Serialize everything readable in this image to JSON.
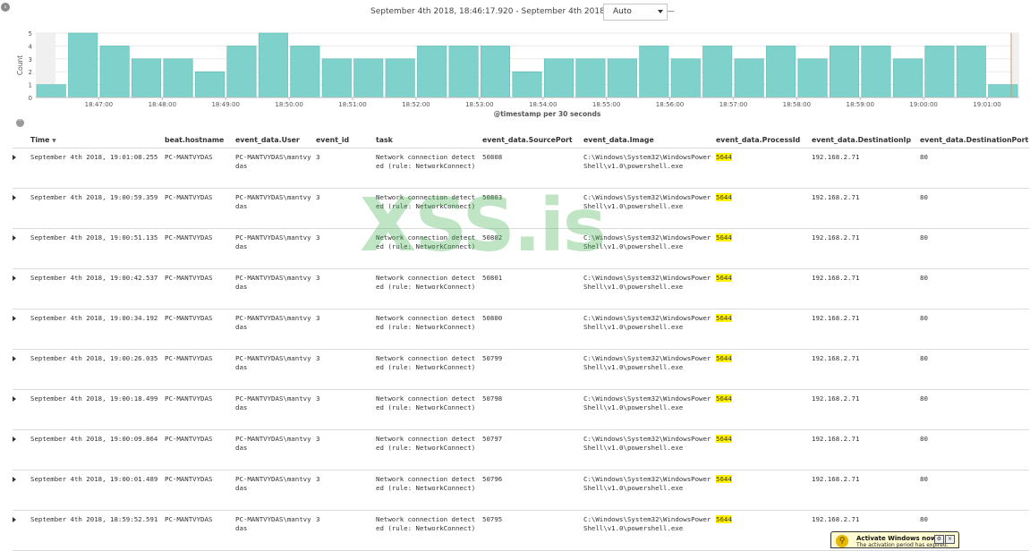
{
  "header": {
    "date_range": "September 4th 2018, 18:46:17.920 - September 4th 2018, 19:01:17.920 —",
    "interval_value": "Auto"
  },
  "chart_data": {
    "type": "bar",
    "ylabel": "Count",
    "xlabel": "@timestamp per 30 seconds",
    "ylim": [
      0,
      5
    ],
    "y_ticks": [
      "0",
      "1",
      "2",
      "3",
      "4",
      "5"
    ],
    "x_tick_labels": [
      "18:47:00",
      "18:48:00",
      "18:49:00",
      "18:50:00",
      "18:51:00",
      "18:52:00",
      "18:53:00",
      "18:54:00",
      "18:55:00",
      "18:56:00",
      "18:57:00",
      "18:58:00",
      "18:59:00",
      "19:00:00",
      "19:01:00"
    ],
    "values": [
      1,
      5,
      4,
      3,
      3,
      2,
      4,
      5,
      4,
      3,
      3,
      3,
      4,
      4,
      4,
      2,
      3,
      3,
      3,
      4,
      3,
      4,
      3,
      4,
      3,
      4,
      4,
      3,
      4,
      4,
      1
    ],
    "bar_color": "#7fd1cb",
    "bar_stroke": "#5bbdb6",
    "grid": true
  },
  "table": {
    "columns": [
      "Time",
      "beat.hostname",
      "event_data.User",
      "event_id",
      "task",
      "event_data.SourcePort",
      "event_data.Image",
      "event_data.ProcessId",
      "event_data.DestinationIp",
      "event_data.DestinationPort"
    ],
    "rows": [
      {
        "time": "September 4th 2018, 19:01:08.255",
        "host": "PC-MANTVYDAS",
        "user": "PC-MANTVYDAS\\mantvydas",
        "event_id": "3",
        "task": "Network connection detected (rule: NetworkConnect)",
        "source_port": "50808",
        "image": "C:\\Windows\\System32\\WindowsPowerShell\\v1.0\\powershell.exe",
        "process_id": "5644",
        "dest_ip": "192.168.2.71",
        "dest_port": "80"
      },
      {
        "time": "September 4th 2018, 19:00:59.359",
        "host": "PC-MANTVYDAS",
        "user": "PC-MANTVYDAS\\mantvydas",
        "event_id": "3",
        "task": "Network connection detected (rule: NetworkConnect)",
        "source_port": "50803",
        "image": "C:\\Windows\\System32\\WindowsPowerShell\\v1.0\\powershell.exe",
        "process_id": "5644",
        "dest_ip": "192.168.2.71",
        "dest_port": "80"
      },
      {
        "time": "September 4th 2018, 19:00:51.135",
        "host": "PC-MANTVYDAS",
        "user": "PC-MANTVYDAS\\mantvydas",
        "event_id": "3",
        "task": "Network connection detected (rule: NetworkConnect)",
        "source_port": "50802",
        "image": "C:\\Windows\\System32\\WindowsPowerShell\\v1.0\\powershell.exe",
        "process_id": "5644",
        "dest_ip": "192.168.2.71",
        "dest_port": "80"
      },
      {
        "time": "September 4th 2018, 19:00:42.537",
        "host": "PC-MANTVYDAS",
        "user": "PC-MANTVYDAS\\mantvydas",
        "event_id": "3",
        "task": "Network connection detected (rule: NetworkConnect)",
        "source_port": "50801",
        "image": "C:\\Windows\\System32\\WindowsPowerShell\\v1.0\\powershell.exe",
        "process_id": "5644",
        "dest_ip": "192.168.2.71",
        "dest_port": "80"
      },
      {
        "time": "September 4th 2018, 19:00:34.192",
        "host": "PC-MANTVYDAS",
        "user": "PC-MANTVYDAS\\mantvydas",
        "event_id": "3",
        "task": "Network connection detected (rule: NetworkConnect)",
        "source_port": "50800",
        "image": "C:\\Windows\\System32\\WindowsPowerShell\\v1.0\\powershell.exe",
        "process_id": "5644",
        "dest_ip": "192.168.2.71",
        "dest_port": "80"
      },
      {
        "time": "September 4th 2018, 19:00:26.035",
        "host": "PC-MANTVYDAS",
        "user": "PC-MANTVYDAS\\mantvydas",
        "event_id": "3",
        "task": "Network connection detected (rule: NetworkConnect)",
        "source_port": "50799",
        "image": "C:\\Windows\\System32\\WindowsPowerShell\\v1.0\\powershell.exe",
        "process_id": "5644",
        "dest_ip": "192.168.2.71",
        "dest_port": "80"
      },
      {
        "time": "September 4th 2018, 19:00:18.499",
        "host": "PC-MANTVYDAS",
        "user": "PC-MANTVYDAS\\mantvydas",
        "event_id": "3",
        "task": "Network connection detected (rule: NetworkConnect)",
        "source_port": "50798",
        "image": "C:\\Windows\\System32\\WindowsPowerShell\\v1.0\\powershell.exe",
        "process_id": "5644",
        "dest_ip": "192.168.2.71",
        "dest_port": "80"
      },
      {
        "time": "September 4th 2018, 19:00:09.864",
        "host": "PC-MANTVYDAS",
        "user": "PC-MANTVYDAS\\mantvydas",
        "event_id": "3",
        "task": "Network connection detected (rule: NetworkConnect)",
        "source_port": "50797",
        "image": "C:\\Windows\\System32\\WindowsPowerShell\\v1.0\\powershell.exe",
        "process_id": "5644",
        "dest_ip": "192.168.2.71",
        "dest_port": "80"
      },
      {
        "time": "September 4th 2018, 19:00:01.489",
        "host": "PC-MANTVYDAS",
        "user": "PC-MANTVYDAS\\mantvydas",
        "event_id": "3",
        "task": "Network connection detected (rule: NetworkConnect)",
        "source_port": "50796",
        "image": "C:\\Windows\\System32\\WindowsPowerShell\\v1.0\\powershell.exe",
        "process_id": "5644",
        "dest_ip": "192.168.2.71",
        "dest_port": "80"
      },
      {
        "time": "September 4th 2018, 18:59:52.591",
        "host": "PC-MANTVYDAS",
        "user": "PC-MANTVYDAS\\mantvydas",
        "event_id": "3",
        "task": "Network connection detected (rule: NetworkConnect)",
        "source_port": "50795",
        "image": "C:\\Windows\\System32\\WindowsPowerShell\\v1.0\\powershell.exe",
        "process_id": "5644",
        "dest_ip": "192.168.2.71",
        "dest_port": "80"
      }
    ]
  },
  "watermark": "XSS.is",
  "activation": {
    "title": "Activate Windows now",
    "subtitle": "The activation period has expired."
  }
}
